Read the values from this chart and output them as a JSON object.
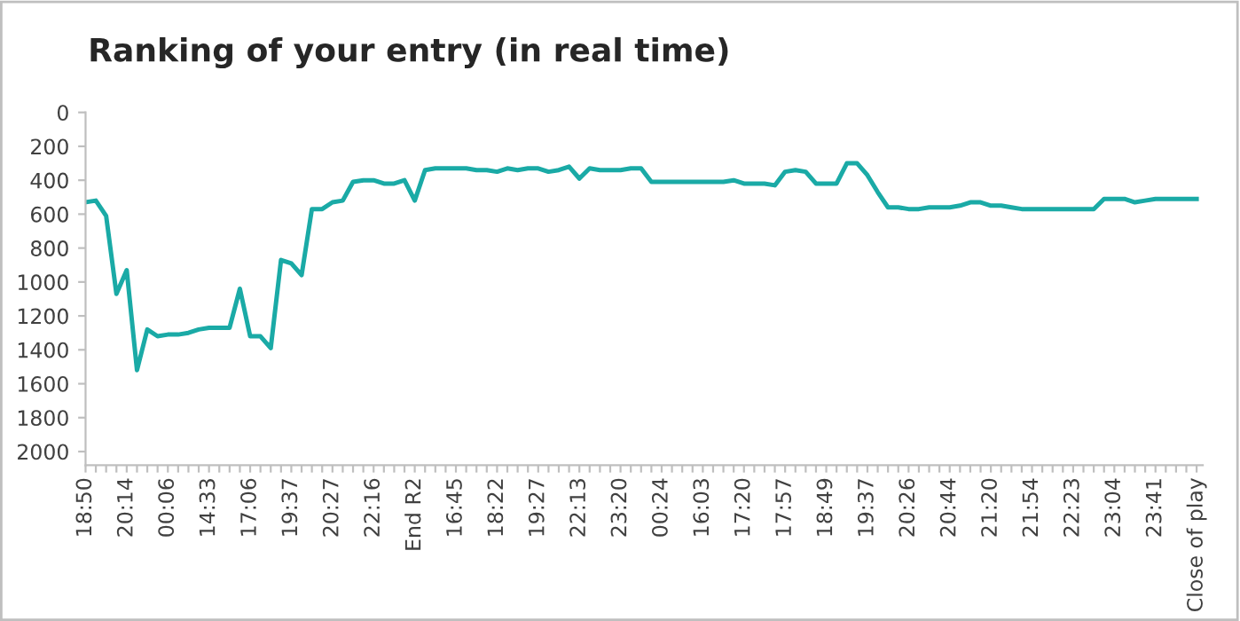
{
  "chart_data": {
    "type": "line",
    "title": "Ranking of your entry (in real time)",
    "categories": [
      "18:50",
      null,
      null,
      null,
      "20:14",
      null,
      null,
      null,
      "00:06",
      null,
      null,
      null,
      "14:33",
      null,
      null,
      null,
      "17:06",
      null,
      null,
      null,
      "19:37",
      null,
      null,
      null,
      "20:27",
      null,
      null,
      null,
      "22:16",
      null,
      null,
      null,
      "End R2",
      null,
      null,
      null,
      "16:45",
      null,
      null,
      null,
      "18:22",
      null,
      null,
      null,
      "19:27",
      null,
      null,
      null,
      "22:13",
      null,
      null,
      null,
      "23:20",
      null,
      null,
      null,
      "00:24",
      null,
      null,
      null,
      "16:03",
      null,
      null,
      null,
      "17:20",
      null,
      null,
      null,
      "17:57",
      null,
      null,
      null,
      "18:49",
      null,
      null,
      null,
      "19:37",
      null,
      null,
      null,
      "20:26",
      null,
      null,
      null,
      "20:44",
      null,
      null,
      null,
      "21:20",
      null,
      null,
      null,
      "21:54",
      null,
      null,
      null,
      "22:23",
      null,
      null,
      null,
      "23:04",
      null,
      null,
      null,
      "23:41",
      null,
      null,
      null,
      "Close of play"
    ],
    "series": [
      {
        "color": "#1aaaa6",
        "values": [
          530,
          520,
          610,
          1070,
          930,
          1520,
          1280,
          1320,
          1310,
          1310,
          1300,
          1280,
          1270,
          1270,
          1270,
          1040,
          1320,
          1320,
          1390,
          870,
          890,
          960,
          570,
          570,
          530,
          520,
          410,
          400,
          400,
          420,
          420,
          400,
          520,
          340,
          330,
          330,
          330,
          330,
          340,
          340,
          350,
          330,
          340,
          330,
          330,
          350,
          340,
          320,
          390,
          330,
          340,
          340,
          340,
          330,
          330,
          410,
          410,
          410,
          410,
          410,
          410,
          410,
          410,
          400,
          420,
          420,
          420,
          430,
          350,
          340,
          350,
          420,
          420,
          420,
          300,
          300,
          370,
          470,
          560,
          560,
          570,
          570,
          560,
          560,
          560,
          550,
          530,
          530,
          550,
          550,
          560,
          570,
          570,
          570,
          570,
          570,
          570,
          570,
          570,
          510,
          510,
          510,
          530,
          520,
          510,
          510,
          510,
          510,
          510
        ]
      }
    ],
    "ylim": [
      2080,
      0
    ],
    "yticks": [
      0,
      200,
      400,
      600,
      800,
      1000,
      1200,
      1400,
      1600,
      1800,
      2000
    ],
    "grid": false,
    "marker": "none",
    "line_style": "solid"
  }
}
